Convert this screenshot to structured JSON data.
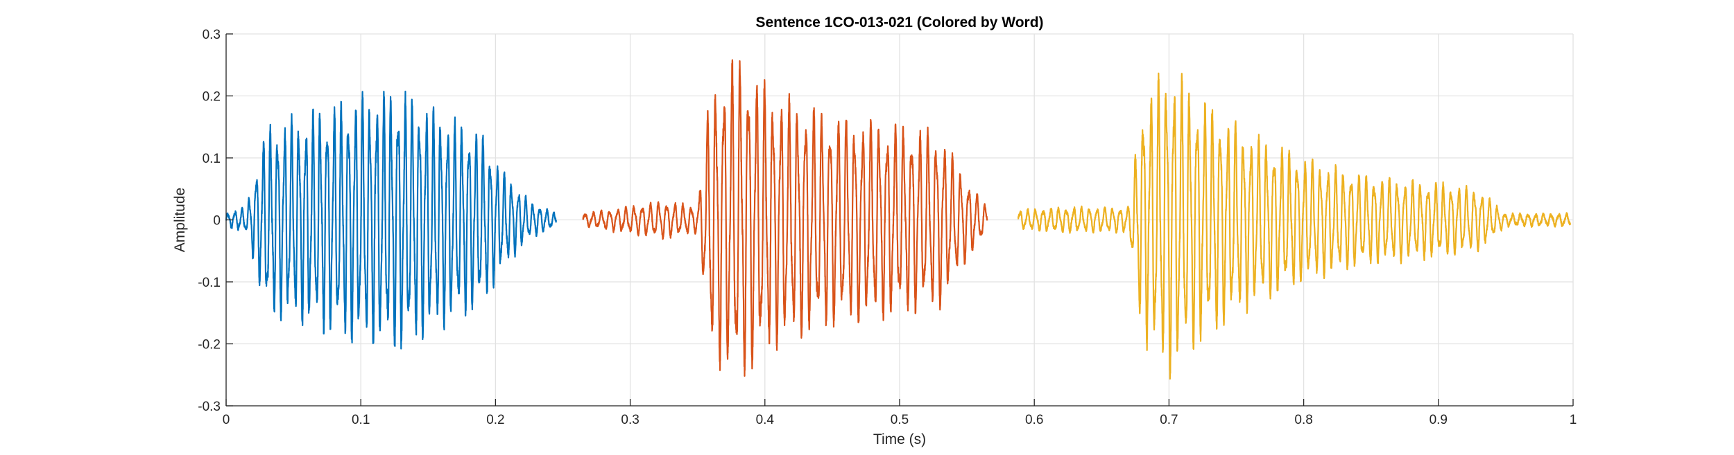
{
  "chart_data": {
    "type": "line",
    "title": "Sentence 1CO-013-021 (Colored by Word)",
    "xlabel": "Time (s)",
    "ylabel": "Amplitude",
    "xlim": [
      0,
      1
    ],
    "ylim": [
      -0.3,
      0.3
    ],
    "grid": true,
    "xticks": [
      0,
      0.1,
      0.2,
      0.3,
      0.4,
      0.5,
      0.6,
      0.7,
      0.8,
      0.9,
      1
    ],
    "xtick_labels": [
      "0",
      "0.1",
      "0.2",
      "0.3",
      "0.4",
      "0.5",
      "0.6",
      "0.7",
      "0.8",
      "0.9",
      "1"
    ],
    "yticks": [
      -0.3,
      -0.2,
      -0.1,
      0,
      0.1,
      0.2,
      0.3
    ],
    "ytick_labels": [
      "-0.3",
      "-0.2",
      "-0.1",
      "0",
      "0.1",
      "0.2",
      "0.3"
    ],
    "series": [
      {
        "color": "#0072BD",
        "time_range": [
          0.0,
          0.245
        ],
        "oscillation_frequency_hz": 190,
        "envelope": [
          [
            0.0,
            0.01
          ],
          [
            0.015,
            0.02
          ],
          [
            0.03,
            0.15
          ],
          [
            0.06,
            0.17
          ],
          [
            0.1,
            0.2
          ],
          [
            0.13,
            0.21
          ],
          [
            0.16,
            0.17
          ],
          [
            0.19,
            0.14
          ],
          [
            0.205,
            0.08
          ],
          [
            0.225,
            0.03
          ],
          [
            0.245,
            0.01
          ]
        ]
      },
      {
        "color": "#D95319",
        "time_range": [
          0.265,
          0.565
        ],
        "oscillation_frequency_hz": 165,
        "envelope": [
          [
            0.265,
            0.01
          ],
          [
            0.295,
            0.02
          ],
          [
            0.325,
            0.03
          ],
          [
            0.35,
            0.02
          ],
          [
            0.36,
            0.22
          ],
          [
            0.38,
            0.26
          ],
          [
            0.41,
            0.2
          ],
          [
            0.45,
            0.17
          ],
          [
            0.48,
            0.16
          ],
          [
            0.53,
            0.14
          ],
          [
            0.545,
            0.08
          ],
          [
            0.565,
            0.02
          ]
        ]
      },
      {
        "color": "#EDB120",
        "time_range": [
          0.588,
          0.998
        ],
        "oscillation_frequency_hz": 175,
        "envelope": [
          [
            0.588,
            0.015
          ],
          [
            0.62,
            0.02
          ],
          [
            0.67,
            0.02
          ],
          [
            0.68,
            0.19
          ],
          [
            0.7,
            0.25
          ],
          [
            0.72,
            0.2
          ],
          [
            0.76,
            0.14
          ],
          [
            0.8,
            0.1
          ],
          [
            0.85,
            0.07
          ],
          [
            0.9,
            0.06
          ],
          [
            0.93,
            0.05
          ],
          [
            0.95,
            0.01
          ],
          [
            0.998,
            0.01
          ]
        ]
      }
    ]
  }
}
